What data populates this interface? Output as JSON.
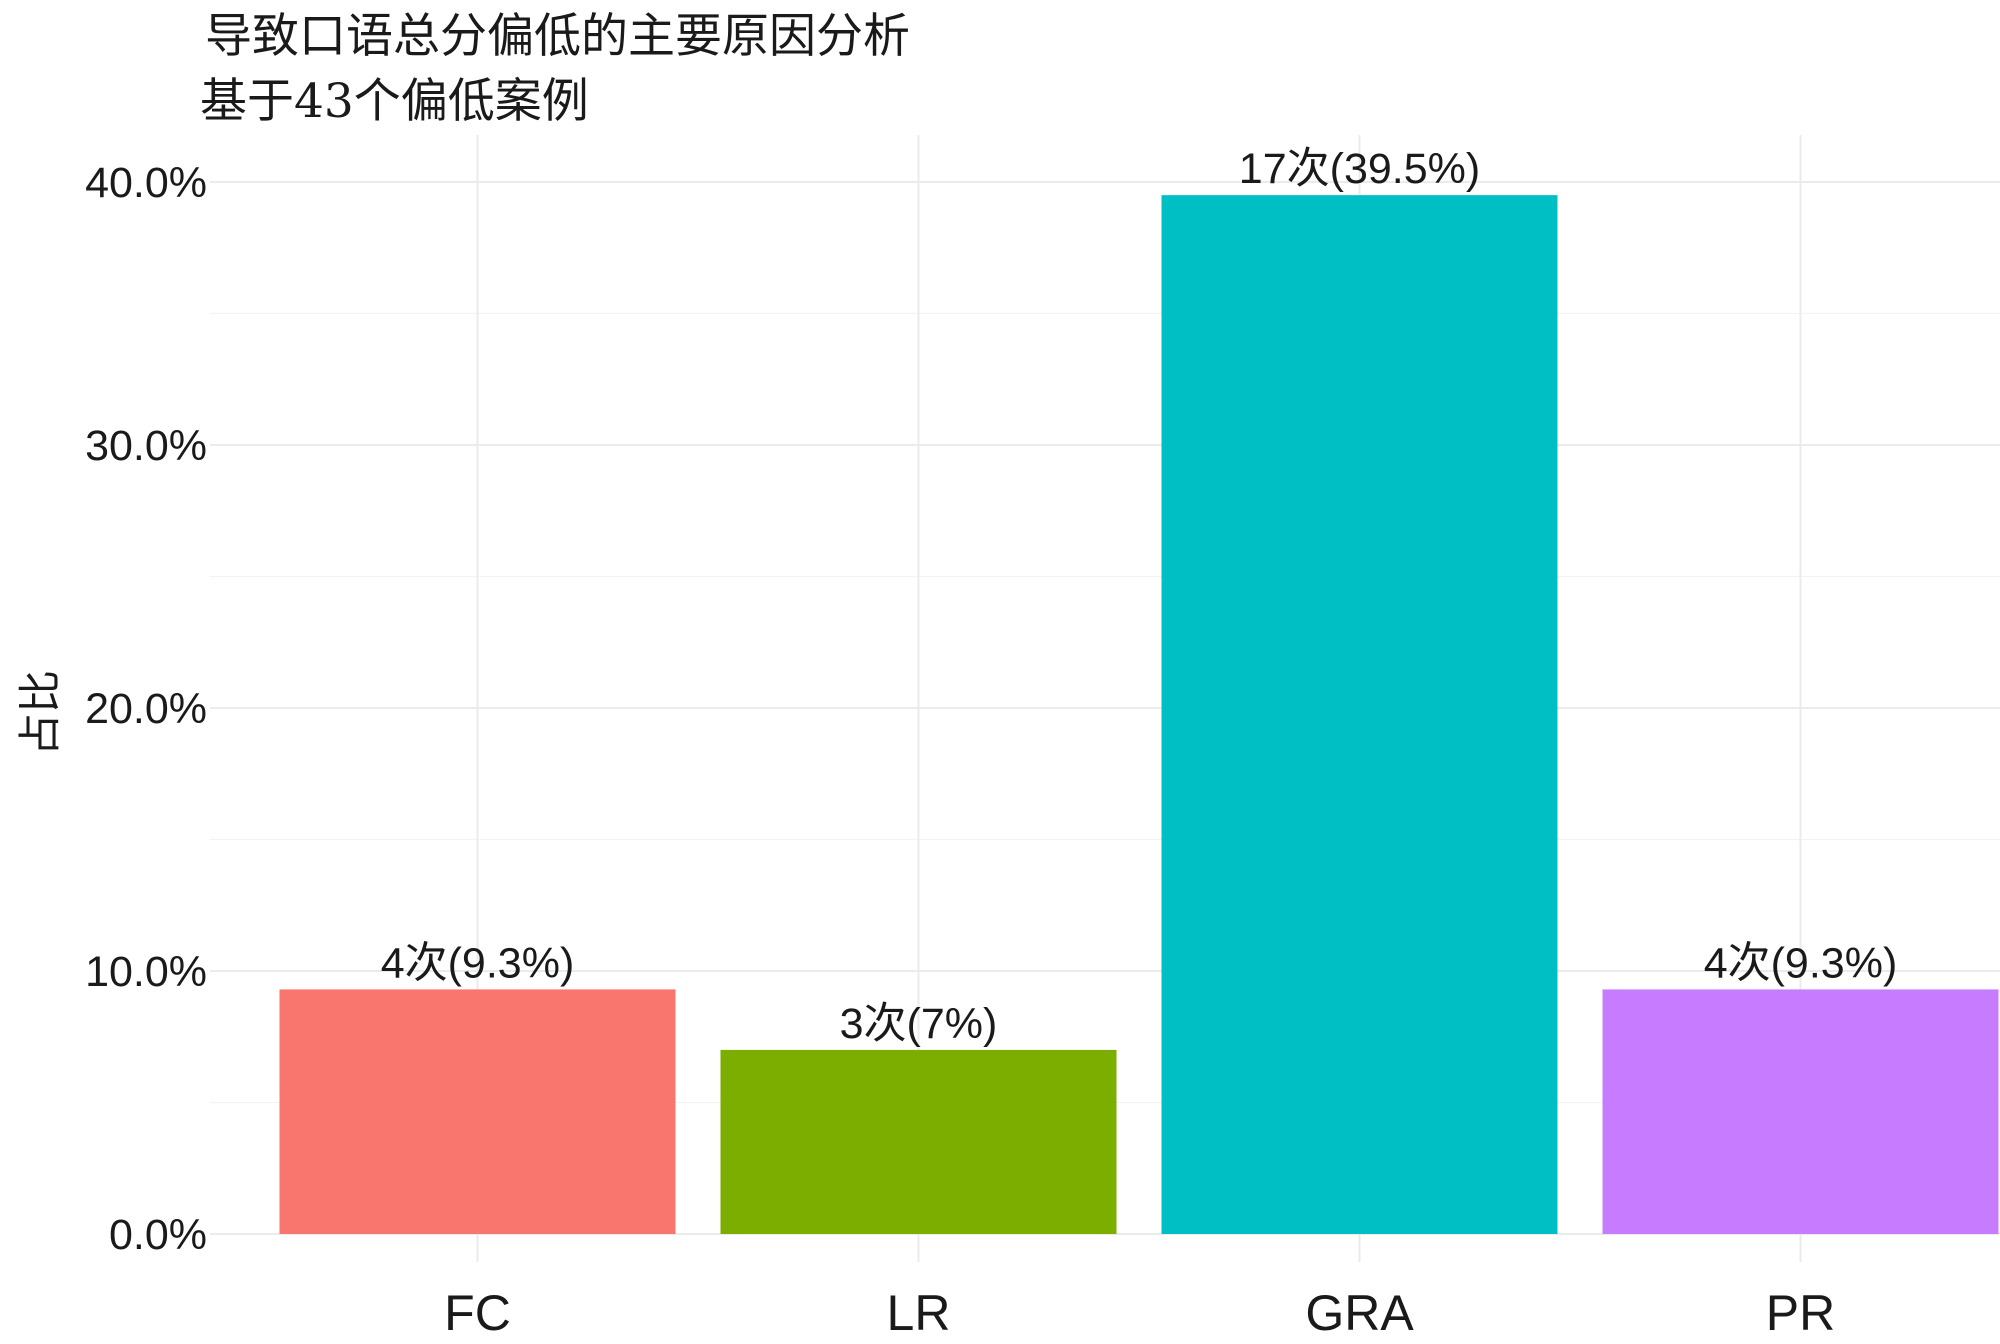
{
  "chart_data": {
    "type": "bar",
    "title": "导致口语总分偏低的主要原因分析",
    "subtitle": "基于43个偏低案例",
    "ylabel": "占比",
    "xlabel": "",
    "categories": [
      "FC",
      "LR",
      "GRA",
      "PR"
    ],
    "values": [
      9.3,
      7.0,
      39.5,
      9.3
    ],
    "data_labels": [
      "4次(9.3%)",
      "3次(7%)",
      "17次(39.5%)",
      "4次(9.3%)"
    ],
    "colors": [
      "#F8766D",
      "#7CAE00",
      "#00BFC4",
      "#C77CFF"
    ],
    "ylim": [
      0,
      40
    ],
    "yticks": [
      0,
      10,
      20,
      30,
      40
    ],
    "ytick_labels": [
      "0.0%",
      "10.0%",
      "20.0%",
      "30.0%",
      "40.0%"
    ],
    "grid": true,
    "legend": "none"
  }
}
